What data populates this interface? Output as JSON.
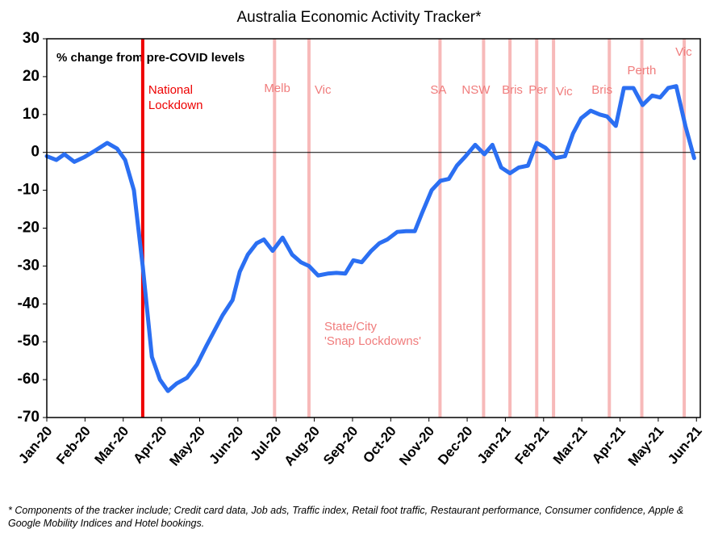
{
  "chart_data": {
    "type": "line",
    "title": "Australia Economic Activity Tracker*",
    "subtitle": "% change from pre-COVID levels",
    "footnote": "* Components of the tracker include; Credit card data, Job ads, Traffic index, Retail foot traffic, Restaurant performance, Consumer confidence, Apple & Google Mobility Indices and Hotel bookings.",
    "xlim": [
      0,
      17.1
    ],
    "xticks": [
      {
        "value": 0,
        "label": "Jan-20"
      },
      {
        "value": 1,
        "label": "Feb-20"
      },
      {
        "value": 2,
        "label": "Mar-20"
      },
      {
        "value": 3,
        "label": "Apr-20"
      },
      {
        "value": 4,
        "label": "May-20"
      },
      {
        "value": 5,
        "label": "Jun-20"
      },
      {
        "value": 6,
        "label": "Jul-20"
      },
      {
        "value": 7,
        "label": "Aug-20"
      },
      {
        "value": 8,
        "label": "Sep-20"
      },
      {
        "value": 9,
        "label": "Oct-20"
      },
      {
        "value": 10,
        "label": "Nov-20"
      },
      {
        "value": 11,
        "label": "Dec-20"
      },
      {
        "value": 12,
        "label": "Jan-21"
      },
      {
        "value": 13,
        "label": "Feb-21"
      },
      {
        "value": 14,
        "label": "Mar-21"
      },
      {
        "value": 15,
        "label": "Apr-21"
      },
      {
        "value": 16,
        "label": "May-21"
      },
      {
        "value": 17,
        "label": "Jun-21"
      }
    ],
    "ylim": [
      -70,
      30
    ],
    "yticks": [
      -70,
      -60,
      -50,
      -40,
      -30,
      -20,
      -10,
      0,
      10,
      20,
      30
    ],
    "series": [
      {
        "name": "Economic Activity Tracker",
        "color": "#2b6ff2",
        "x": [
          0,
          0.25,
          0.46,
          0.72,
          0.99,
          1.27,
          1.58,
          1.84,
          2.05,
          2.28,
          2.51,
          2.75,
          2.96,
          3.17,
          3.4,
          3.67,
          3.93,
          4.18,
          4.39,
          4.6,
          4.86,
          5.05,
          5.26,
          5.49,
          5.68,
          5.91,
          6.17,
          6.42,
          6.65,
          6.86,
          7.1,
          7.35,
          7.58,
          7.81,
          8.02,
          8.24,
          8.49,
          8.7,
          8.91,
          9.17,
          9.4,
          9.63,
          9.82,
          10.07,
          10.3,
          10.52,
          10.73,
          10.96,
          11.21,
          11.45,
          11.66,
          11.89,
          12.12,
          12.35,
          12.59,
          12.82,
          13.05,
          13.31,
          13.56,
          13.77,
          13.98,
          14.23,
          14.47,
          14.66,
          14.89,
          15.1,
          15.35,
          15.59,
          15.84,
          16.05,
          16.26,
          16.47,
          16.71,
          16.94
        ],
        "values": [
          -1,
          -2,
          -0.5,
          -2.5,
          -1.2,
          0.5,
          2.5,
          1,
          -2,
          -10,
          -30,
          -54,
          -60,
          -63,
          -61,
          -59.5,
          -56,
          -51,
          -47,
          -43,
          -39,
          -31.5,
          -27,
          -24,
          -23,
          -26,
          -22.5,
          -27,
          -29,
          -30,
          -32.5,
          -32,
          -31.8,
          -32,
          -28.5,
          -29,
          -26,
          -24,
          -23,
          -21,
          -20.8,
          -20.8,
          -16,
          -10,
          -7.5,
          -7,
          -3.5,
          -1,
          2,
          -0.5,
          2,
          -4,
          -5.5,
          -4,
          -3.5,
          2.5,
          1.2,
          -1.5,
          -1,
          5,
          9,
          11,
          10,
          9.5,
          7,
          17,
          17,
          12.5,
          15,
          14.5,
          17,
          17.5,
          7,
          -1.5
        ]
      }
    ],
    "national_lockdown": {
      "x": 2.51,
      "label": [
        "National",
        "Lockdown"
      ],
      "color": "#ee0000"
    },
    "snap_lockdowns": {
      "label": [
        "State/City",
        "'Snap Lockdowns'"
      ],
      "color": "#f7b9b9",
      "text_color": "#f07c7c",
      "lines": [
        {
          "x": 5.96,
          "label": "Melb"
        },
        {
          "x": 6.86,
          "label": "Vic"
        },
        {
          "x": 10.29,
          "label": "SA"
        },
        {
          "x": 11.43,
          "label": "NSW"
        },
        {
          "x": 12.12,
          "label": "Bris"
        },
        {
          "x": 12.82,
          "label": "Per"
        },
        {
          "x": 13.26,
          "label": "Vic"
        },
        {
          "x": 14.72,
          "label": "Bris"
        },
        {
          "x": 15.57,
          "label": "Perth"
        },
        {
          "x": 16.68,
          "label": "Vic"
        }
      ]
    }
  }
}
